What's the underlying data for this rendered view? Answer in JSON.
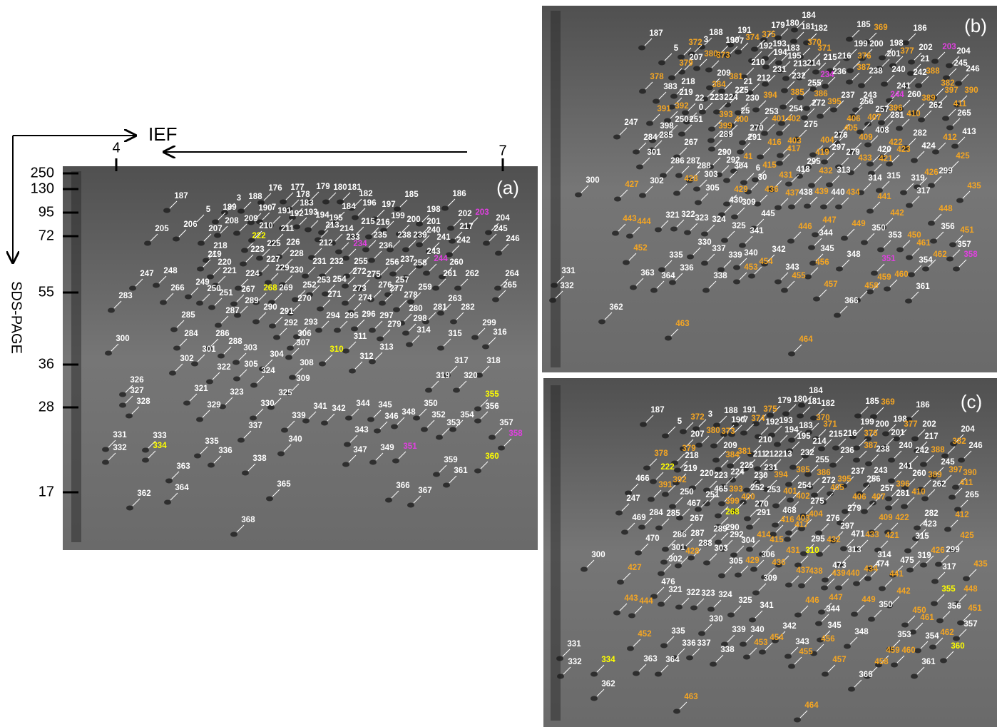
{
  "axes": {
    "ief": "IEF",
    "sds": "SDS-PAGE",
    "pi": [
      "4",
      "7"
    ],
    "mw": [
      "250",
      "130",
      "95",
      "72",
      "55",
      "36",
      "28",
      "17"
    ]
  },
  "panels": [
    {
      "label": "(a)",
      "colors": [
        "#ffffff",
        "#ffff00",
        "#e040e0"
      ],
      "spots": [
        "187",
        "176",
        "177",
        "178",
        "179",
        "180",
        "181",
        "182",
        "185",
        "186",
        "3",
        "188",
        "189",
        "190",
        "7",
        "191",
        "183",
        "184",
        "196",
        "197",
        "198",
        "5",
        "208",
        "209",
        "192",
        "193",
        "194",
        "195",
        "215",
        "216",
        "199",
        "200",
        "201",
        "202",
        "203",
        "204",
        "205",
        "206",
        "207",
        "222",
        "210",
        "211",
        "213",
        "214",
        "217",
        "245",
        "218",
        "223",
        "225",
        "226",
        "212",
        "233",
        "234",
        "235",
        "236",
        "238",
        "239",
        "240",
        "241",
        "242",
        "246",
        "219",
        "228",
        "243",
        "244",
        "260",
        "220",
        "227",
        "231",
        "232",
        "255",
        "256",
        "237",
        "258",
        "221",
        "224",
        "229",
        "230",
        "272",
        "275",
        "257",
        "261",
        "262",
        "264",
        "247",
        "248",
        "249",
        "253",
        "254",
        "276",
        "277",
        "259",
        "265",
        "266",
        "250",
        "251",
        "267",
        "268",
        "269",
        "252",
        "271",
        "273",
        "274",
        "278",
        "263",
        "283",
        "289",
        "270",
        "281",
        "282",
        "290",
        "291",
        "280",
        "285",
        "287",
        "294",
        "295",
        "296",
        "297",
        "298",
        "292",
        "293",
        "279",
        "286",
        "284",
        "288",
        "306",
        "311",
        "314",
        "315",
        "299",
        "316",
        "300",
        "307",
        "313",
        "303",
        "310",
        "301",
        "304",
        "312",
        "302",
        "308",
        "305",
        "317",
        "318",
        "322",
        "324",
        "309",
        "319",
        "320",
        "326",
        "321",
        "323",
        "325",
        "327",
        "328",
        "329",
        "330",
        "355",
        "356",
        "341",
        "342",
        "344",
        "345",
        "348",
        "350",
        "339",
        "346",
        "352",
        "354",
        "353",
        "357",
        "337",
        "343",
        "358",
        "331",
        "333",
        "335",
        "340",
        "347",
        "349",
        "351",
        "359",
        "360",
        "332",
        "334",
        "336",
        "338",
        "361",
        "363",
        "362",
        "364",
        "365",
        "366",
        "367",
        "368"
      ]
    },
    {
      "label": "(b)",
      "colors": [
        "#ffffff",
        "#f5a623",
        "#e040e0"
      ],
      "spots": [
        "187",
        "188",
        "191",
        "179",
        "180",
        "184",
        "181",
        "182",
        "185",
        "369",
        "186",
        "372",
        "3",
        "190",
        "7",
        "374",
        "375",
        "192",
        "193",
        "183",
        "370",
        "371",
        "199",
        "200",
        "198",
        "377",
        "202",
        "203",
        "204",
        "5",
        "380",
        "373",
        "207",
        "194",
        "195",
        "215",
        "216",
        "376",
        "201",
        "21",
        "379",
        "210",
        "213",
        "214",
        "245",
        "246",
        "231",
        "212",
        "209",
        "381",
        "387",
        "238",
        "240",
        "242",
        "388",
        "378",
        "218",
        "21",
        "232",
        "234",
        "236",
        "383",
        "384",
        "225",
        "255",
        "241",
        "382",
        "397",
        "390",
        "219",
        "22",
        "223",
        "224",
        "230",
        "394",
        "385",
        "386",
        "237",
        "243",
        "244",
        "260",
        "389",
        "272",
        "395",
        "256",
        "391",
        "392",
        "0",
        "25",
        "253",
        "254",
        "396",
        "262",
        "411",
        "393",
        "257",
        "281",
        "410",
        "265",
        "247",
        "250",
        "251",
        "400",
        "401",
        "402",
        "406",
        "407",
        "398",
        "399",
        "270",
        "275",
        "405",
        "408",
        "413",
        "284",
        "285",
        "289",
        "291",
        "276",
        "409",
        "282",
        "412",
        "267",
        "416",
        "403",
        "404",
        "422",
        "424",
        "301",
        "290",
        "297",
        "279",
        "420",
        "423",
        "425",
        "286",
        "287",
        "41",
        "417",
        "419",
        "295",
        "433",
        "421",
        "288",
        "292",
        "304",
        "415",
        "418",
        "432",
        "313",
        "426",
        "299",
        "303",
        "30",
        "431",
        "314",
        "315",
        "319",
        "6",
        "300",
        "427",
        "302",
        "428",
        "305",
        "429",
        "436",
        "437",
        "438",
        "439",
        "440",
        "434",
        "317",
        "435",
        "430",
        "309",
        "441",
        "445",
        "448",
        "442",
        "443",
        "444",
        "321",
        "322",
        "323",
        "324",
        "447",
        "325",
        "449",
        "446",
        "350",
        "356",
        "451",
        "341",
        "344",
        "353",
        "450",
        "330",
        "337",
        "461",
        "357",
        "452",
        "342",
        "345",
        "348",
        "462",
        "358",
        "335",
        "339",
        "340",
        "351",
        "354",
        "336",
        "453",
        "454",
        "456",
        "331",
        "363",
        "364",
        "338",
        "343",
        "455",
        "460",
        "459",
        "332",
        "457",
        "458",
        "361",
        "366",
        "362",
        "463",
        "464"
      ]
    },
    {
      "label": "(c)",
      "colors": [
        "#ffffff",
        "#f5a623",
        "#ffff00"
      ],
      "spots": [
        "187",
        "188",
        "191",
        "179",
        "180",
        "184",
        "181",
        "182",
        "185",
        "369",
        "186",
        "372",
        "3",
        "190",
        "7",
        "375",
        "374",
        "192",
        "193",
        "183",
        "370",
        "371",
        "199",
        "200",
        "198",
        "377",
        "202",
        "204",
        "5",
        "380",
        "373",
        "207",
        "210",
        "194",
        "195",
        "214",
        "215",
        "216",
        "376",
        "201",
        "217",
        "382",
        "379",
        "209",
        "381",
        "211",
        "212",
        "213",
        "232",
        "236",
        "387",
        "238",
        "240",
        "242",
        "388",
        "246",
        "378",
        "218",
        "384",
        "255",
        "245",
        "222",
        "219",
        "225",
        "231",
        "385",
        "386",
        "237",
        "243",
        "241",
        "260",
        "389",
        "397",
        "390",
        "466",
        "220",
        "223",
        "224",
        "230",
        "394",
        "272",
        "395",
        "256",
        "396",
        "262",
        "411",
        "391",
        "392",
        "465",
        "393",
        "252",
        "253",
        "254",
        "401",
        "405",
        "257",
        "281",
        "410",
        "247",
        "250",
        "251",
        "400",
        "402",
        "275",
        "406",
        "407",
        "265",
        "467",
        "399",
        "270",
        "279",
        "469",
        "284",
        "285",
        "268",
        "291",
        "468",
        "404",
        "276",
        "409",
        "422",
        "282",
        "412",
        "267",
        "416",
        "403",
        "417",
        "297",
        "423",
        "286",
        "287",
        "289",
        "290",
        "414",
        "471",
        "433",
        "421",
        "315",
        "425",
        "470",
        "288",
        "292",
        "304",
        "415",
        "295",
        "432",
        "301",
        "303",
        "431",
        "310",
        "313",
        "314",
        "474",
        "475",
        "319",
        "426",
        "299",
        "300",
        "302",
        "428",
        "306",
        "436",
        "473",
        "317",
        "435",
        "305",
        "429",
        "437",
        "438",
        "439",
        "440",
        "434",
        "427",
        "309",
        "441",
        "442",
        "476",
        "321",
        "322",
        "323",
        "324",
        "355",
        "448",
        "443",
        "444",
        "325",
        "447",
        "449",
        "341",
        "446",
        "350",
        "344",
        "450",
        "356",
        "451",
        "330",
        "461",
        "342",
        "345",
        "357",
        "452",
        "335",
        "339",
        "340",
        "348",
        "353",
        "354",
        "462",
        "336",
        "337",
        "453",
        "454",
        "456",
        "343",
        "338",
        "455",
        "459",
        "460",
        "360",
        "331",
        "334",
        "363",
        "364",
        "457",
        "458",
        "361",
        "332",
        "366",
        "362",
        "463",
        "464"
      ]
    }
  ]
}
